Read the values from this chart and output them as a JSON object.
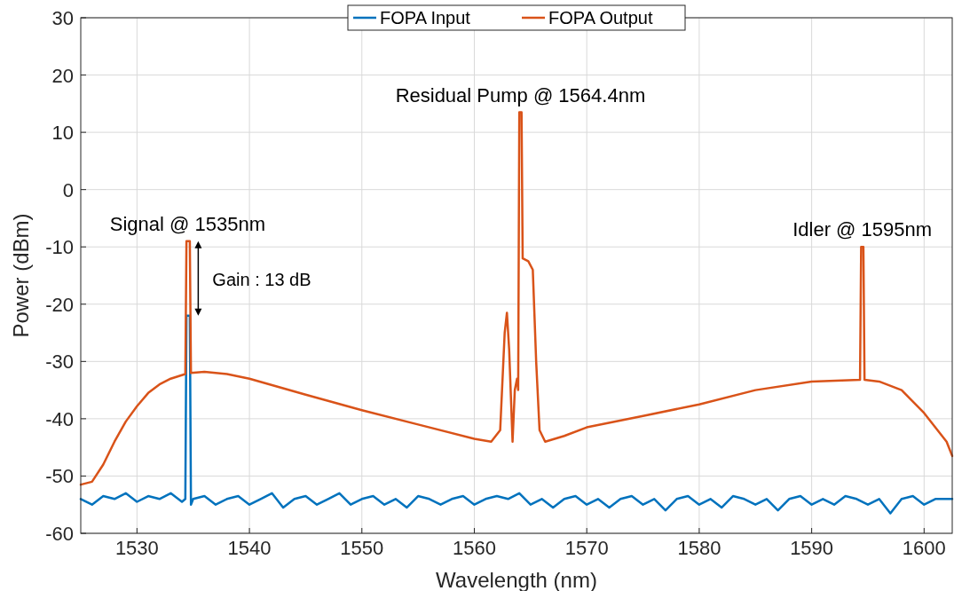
{
  "chart_data": {
    "type": "line",
    "xlabel": "Wavelength (nm)",
    "ylabel": "Power (dBm)",
    "xlim": [
      1525,
      1602.5
    ],
    "xticks": [
      1530,
      1540,
      1550,
      1560,
      1570,
      1580,
      1590,
      1600
    ],
    "ylim": [
      -60,
      30
    ],
    "yticks": [
      -60,
      -50,
      -40,
      -30,
      -20,
      -10,
      0,
      10,
      20,
      30
    ],
    "grid": true,
    "legend": "top",
    "line_style": "solid",
    "annotations": [
      {
        "text": "Signal @ 1535nm",
        "x": 1534.5,
        "y": -9
      },
      {
        "text": "Residual Pump @ 1564.4nm",
        "x": 1564.1,
        "y": 13.5
      },
      {
        "text": "Idler @ 1595nm",
        "x": 1594.5,
        "y": -10
      },
      "Gain : 13 dB"
    ],
    "series": [
      {
        "name": "FOPA Input",
        "color": "#0072bd",
        "x": [
          1525,
          1526,
          1527,
          1528,
          1529,
          1530,
          1531,
          1532,
          1533,
          1534,
          1534.3,
          1534.4,
          1534.7,
          1534.8,
          1535,
          1536,
          1537,
          1538,
          1539,
          1540,
          1541,
          1542,
          1543,
          1544,
          1545,
          1546,
          1547,
          1548,
          1549,
          1550,
          1551,
          1552,
          1553,
          1554,
          1555,
          1556,
          1557,
          1558,
          1559,
          1560,
          1561,
          1562,
          1563,
          1564,
          1565,
          1566,
          1567,
          1568,
          1569,
          1570,
          1571,
          1572,
          1573,
          1574,
          1575,
          1576,
          1577,
          1578,
          1579,
          1580,
          1581,
          1582,
          1583,
          1584,
          1585,
          1586,
          1587,
          1588,
          1589,
          1590,
          1591,
          1592,
          1593,
          1594,
          1595,
          1596,
          1597,
          1598,
          1599,
          1600,
          1601,
          1602.5
        ],
        "values": [
          -54,
          -55,
          -53.5,
          -54,
          -53,
          -54.5,
          -53.5,
          -54,
          -53,
          -54.5,
          -54,
          -22,
          -22,
          -55,
          -54,
          -53.5,
          -55,
          -54,
          -53.5,
          -55,
          -54,
          -53,
          -55.5,
          -54,
          -53.5,
          -55,
          -54,
          -53,
          -55,
          -54,
          -53.5,
          -55,
          -54,
          -55.5,
          -53.5,
          -54,
          -55,
          -54,
          -53.5,
          -55,
          -54,
          -53.5,
          -54,
          -53,
          -55,
          -54,
          -55.5,
          -54,
          -53.5,
          -55,
          -54,
          -55.5,
          -54,
          -53.5,
          -55,
          -54,
          -56,
          -54,
          -53.5,
          -55,
          -54,
          -55.5,
          -53.5,
          -54,
          -55,
          -54,
          -56,
          -54,
          -53.5,
          -55,
          -54,
          -55,
          -53.5,
          -54,
          -55,
          -54,
          -56.5,
          -54,
          -53.5,
          -55,
          -54,
          -54
        ]
      },
      {
        "name": "FOPA Output",
        "color": "#d95319",
        "x": [
          1525,
          1526,
          1527,
          1528,
          1529,
          1530,
          1531,
          1532,
          1533,
          1534.3,
          1534.4,
          1534.7,
          1534.8,
          1536,
          1538,
          1540,
          1545,
          1550,
          1555,
          1560,
          1561.5,
          1562.3,
          1562.7,
          1562.9,
          1563.1,
          1563.4,
          1563.6,
          1563.8,
          1563.9,
          1564,
          1564.2,
          1564.3,
          1564.8,
          1565.2,
          1565.5,
          1565.8,
          1566.3,
          1568,
          1570,
          1575,
          1580,
          1585,
          1590,
          1594.3,
          1594.4,
          1594.6,
          1594.7,
          1596,
          1598,
          1600,
          1602,
          1602.5
        ],
        "values": [
          -51.5,
          -51,
          -48,
          -44,
          -40.5,
          -37.8,
          -35.5,
          -34,
          -33,
          -32.2,
          -9,
          -9,
          -32,
          -31.8,
          -32.2,
          -33,
          -35.8,
          -38.5,
          -41,
          -43.5,
          -44,
          -42,
          -25,
          -21.5,
          -28,
          -44,
          -35,
          -33,
          -35,
          13.5,
          13.5,
          -12,
          -12.5,
          -14,
          -30,
          -42,
          -44,
          -43,
          -41.5,
          -39.5,
          -37.5,
          -35,
          -33.5,
          -33.2,
          -10,
          -10,
          -33.2,
          -33.5,
          -35,
          -39,
          -44,
          -46.5
        ]
      }
    ]
  }
}
